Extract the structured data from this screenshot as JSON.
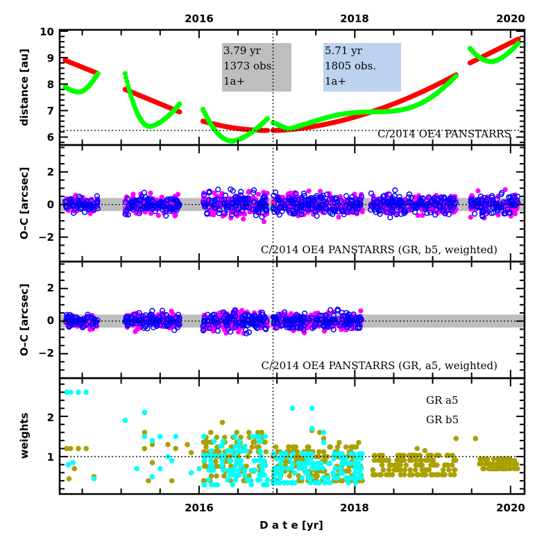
{
  "chart_data": {
    "type": "scatter",
    "layout": "4 stacked panels sharing x-axis",
    "xlabel": "D a t e [yr]",
    "x_tick_labels": [
      "2016",
      "2018",
      "2020"
    ],
    "x_major_ticks": [
      2015,
      2016,
      2017,
      2018,
      2019,
      2020
    ],
    "xlim": [
      2014.21,
      2020.18
    ],
    "vertical_marker_x": 2016.95,
    "panels": [
      {
        "id": "distance",
        "ylabel": "distance [au]",
        "ylim": [
          5.7,
          10.05
        ],
        "y_tick_labels": [
          "6",
          "7",
          "8",
          "9",
          "10"
        ],
        "y_ticks": [
          6,
          7,
          8,
          9,
          10
        ],
        "reference_line_y": 6.25,
        "annotation": "C/2014 OE4 PANSTARRS",
        "info_boxes": [
          {
            "lines": [
              "3.79  yr",
              "1373 obs.",
              "1a+"
            ],
            "color": "#bebebe"
          },
          {
            "lines": [
              "5.71  yr",
              "1805 obs.",
              "1a+"
            ],
            "color": "#bcd2ee"
          }
        ],
        "series": [
          {
            "name": "heliocentric distance",
            "color": "#ff0000",
            "segments": [
              {
                "x": [
                  2014.28,
                  2014.7
                ],
                "y": [
                  8.9,
                  8.4
                ]
              },
              {
                "x": [
                  2015.05,
                  2015.75
                ],
                "y": [
                  7.8,
                  6.95
                ]
              },
              {
                "x": [
                  2016.05,
                  2016.88
                ],
                "y": [
                  6.6,
                  6.25
                ]
              },
              {
                "x": [
                  2016.95,
                  2019.3
                ],
                "y": [
                  6.25,
                  8.35
                ],
                "curve": "quadratic-up"
              },
              {
                "x": [
                  2019.48,
                  2020.1
                ],
                "y": [
                  8.8,
                  9.7
                ]
              }
            ]
          },
          {
            "name": "geocentric distance",
            "color": "#00ff00",
            "segments": [
              {
                "x": [
                  2014.28,
                  2014.7
                ],
                "y_start": 7.9,
                "y_min": 7.7,
                "y_end": 8.4
              },
              {
                "x": [
                  2015.05,
                  2015.75
                ],
                "y_start": 8.4,
                "y_min": 6.4,
                "y_end": 7.25
              },
              {
                "x": [
                  2016.05,
                  2016.88
                ],
                "y_start": 7.05,
                "y_min": 5.85,
                "y_end": 6.7
              },
              {
                "x": [
                  2016.95,
                  2019.3
                ],
                "wave": "oscillating around red, amplitude ~0.3 au, y_end 8.5"
              },
              {
                "x": [
                  2019.48,
                  2020.1
                ],
                "y_start": 9.35,
                "y_min": 8.85,
                "y_end": 9.55
              }
            ]
          }
        ]
      },
      {
        "id": "oc-b5",
        "ylabel": "O–C [arcsec]",
        "ylim": [
          -3.5,
          3.65
        ],
        "y_tick_labels": [
          "−2",
          "0",
          "2"
        ],
        "y_ticks": [
          -2,
          0,
          2
        ],
        "band": [
          -0.4,
          0.4
        ],
        "annotation": "C/2014 OE4 PANSTARRS (GR, b5, weighted)",
        "series": [
          {
            "name": "RA residuals",
            "color": "#ff00ff",
            "marker": "filled-circle"
          },
          {
            "name": "Dec residuals",
            "color": "#0000ff",
            "marker": "open-circle"
          }
        ],
        "observation_clusters": [
          {
            "x": [
              2014.28,
              2014.7
            ],
            "spread": 0.45
          },
          {
            "x": [
              2015.05,
              2015.75
            ],
            "spread": 0.55
          },
          {
            "x": [
              2016.05,
              2016.88
            ],
            "spread": 0.75
          },
          {
            "x": [
              2016.95,
              2018.1
            ],
            "spread": 0.6
          },
          {
            "x": [
              2018.2,
              2019.3
            ],
            "spread": 0.6
          },
          {
            "x": [
              2019.48,
              2020.1
            ],
            "spread": 0.6
          }
        ]
      },
      {
        "id": "oc-a5",
        "ylabel": "O–C [arcsec]",
        "ylim": [
          -3.5,
          3.65
        ],
        "y_tick_labels": [
          "−2",
          "0",
          "2"
        ],
        "y_ticks": [
          -2,
          0,
          2
        ],
        "band": [
          -0.4,
          0.4
        ],
        "annotation": "C/2014 OE4 PANSTARRS (GR, a5, weighted)",
        "series": [
          {
            "name": "RA residuals",
            "color": "#ff00ff",
            "marker": "filled-circle"
          },
          {
            "name": "Dec residuals",
            "color": "#0000ff",
            "marker": "open-circle"
          }
        ],
        "observation_clusters": [
          {
            "x": [
              2014.28,
              2014.7
            ],
            "spread": 0.4
          },
          {
            "x": [
              2015.05,
              2015.75
            ],
            "spread": 0.45
          },
          {
            "x": [
              2016.05,
              2016.88
            ],
            "spread": 0.6
          },
          {
            "x": [
              2016.95,
              2018.1
            ],
            "spread": 0.5
          }
        ]
      },
      {
        "id": "weights",
        "ylabel": "weights",
        "ylim": [
          0.07,
          2.95
        ],
        "y_tick_labels": [
          "1",
          "2"
        ],
        "y_ticks": [
          1,
          2
        ],
        "reference_line_y": 1.0,
        "legend": [
          {
            "label": "GR a5",
            "color": "#00ffff"
          },
          {
            "label": "GR b5",
            "color": "#aaa000"
          }
        ],
        "legend_placement": "top-right",
        "series": [
          {
            "name": "GR a5",
            "color": "#00ffff",
            "points": [
              [
                2014.3,
                2.6
              ],
              [
                2014.35,
                2.6
              ],
              [
                2014.45,
                2.6
              ],
              [
                2014.55,
                2.6
              ],
              [
                2014.32,
                0.8
              ],
              [
                2014.38,
                0.85
              ],
              [
                2014.65,
                0.45
              ],
              [
                2015.05,
                1.9
              ],
              [
                2015.3,
                2.1
              ],
              [
                2015.3,
                1.5
              ],
              [
                2015.4,
                1.4
              ],
              [
                2015.5,
                1.5
              ],
              [
                2015.7,
                1.5
              ],
              [
                2015.2,
                0.7
              ],
              [
                2015.4,
                0.5
              ],
              [
                2015.5,
                0.7
              ],
              [
                2015.6,
                1.0
              ],
              [
                2015.65,
                0.9
              ],
              [
                2015.9,
                0.6
              ],
              [
                2016.0,
                0.7
              ],
              [
                2017.2,
                2.2
              ],
              [
                2017.45,
                2.2
              ],
              [
                2017.45,
                1.7
              ],
              [
                2017.6,
                1.6
              ],
              [
                2017.6,
                1.35
              ]
            ],
            "clusters": [
              {
                "x": [
                  2016.05,
                  2016.88
                ],
                "y_range": [
                  0.3,
                  1.5
                ]
              },
              {
                "x": [
                  2016.95,
                  2018.1
                ],
                "y_range": [
                  0.35,
                  1.1
                ]
              }
            ]
          },
          {
            "name": "GR b5",
            "color": "#aaa000",
            "points": [
              [
                2014.3,
                1.2
              ],
              [
                2014.35,
                1.2
              ],
              [
                2014.45,
                1.2
              ],
              [
                2014.55,
                1.2
              ],
              [
                2014.33,
                0.45
              ],
              [
                2014.4,
                0.7
              ],
              [
                2014.65,
                0.5
              ],
              [
                2015.3,
                1.6
              ],
              [
                2015.3,
                1.2
              ],
              [
                2015.4,
                1.3
              ],
              [
                2015.6,
                1.3
              ],
              [
                2015.7,
                1.2
              ],
              [
                2015.85,
                1.3
              ],
              [
                2015.9,
                1.1
              ],
              [
                2015.35,
                0.4
              ],
              [
                2015.65,
                0.4
              ],
              [
                2015.4,
                0.85
              ],
              [
                2016.3,
                1.85
              ],
              [
                2016.15,
                1.6
              ],
              [
                2017.45,
                1.65
              ],
              [
                2017.6,
                1.45
              ],
              [
                2017.55,
                1.6
              ],
              [
                2017.8,
                1.35
              ],
              [
                2018.05,
                1.35
              ],
              [
                2018.8,
                1.2
              ],
              [
                2018.9,
                1.15
              ],
              [
                2019.3,
                1.45
              ],
              [
                2019.55,
                1.45
              ],
              [
                2020.05,
                0.9
              ]
            ],
            "clusters": [
              {
                "x": [
                  2016.05,
                  2016.88
                ],
                "y_range": [
                  0.4,
                  1.65
                ]
              },
              {
                "x": [
                  2016.95,
                  2018.1
                ],
                "y_range": [
                  0.4,
                  1.25
                ]
              },
              {
                "x": [
                  2018.2,
                  2019.3
                ],
                "y_range": [
                  0.55,
                  1.05
                ]
              },
              {
                "x": [
                  2019.6,
                  2020.1
                ],
                "y_range": [
                  0.7,
                  1.05
                ]
              }
            ]
          }
        ]
      }
    ]
  }
}
